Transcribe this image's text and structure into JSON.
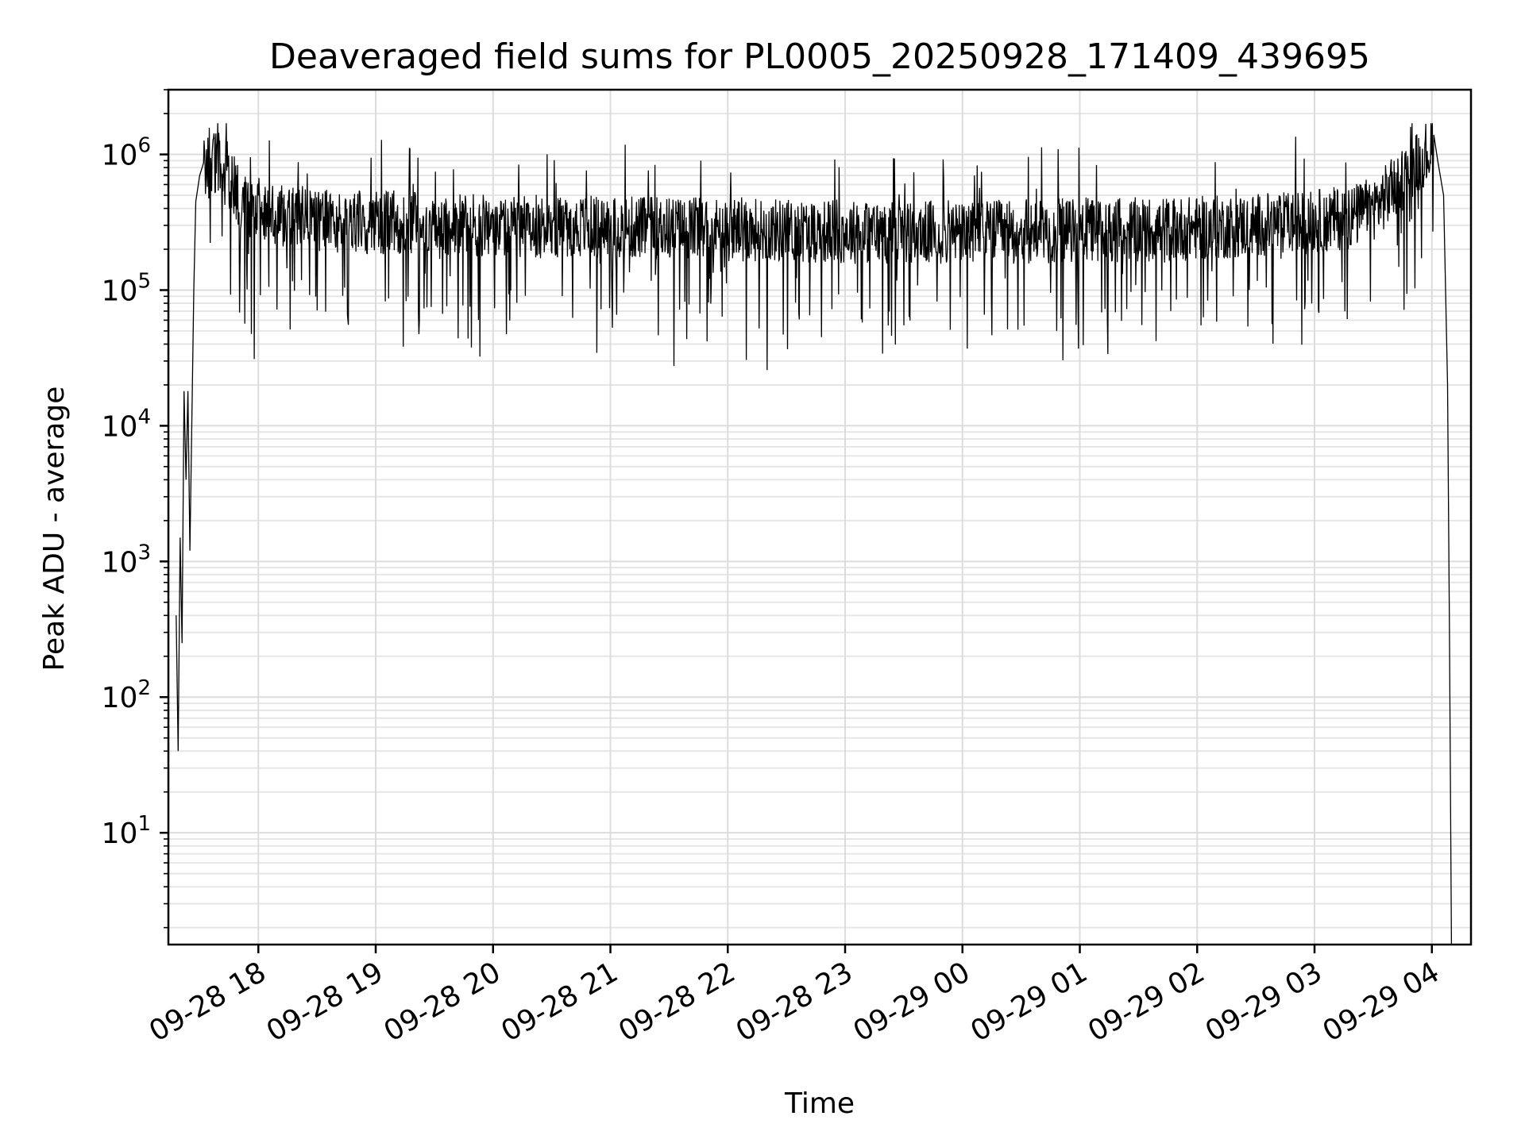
{
  "chart_data": {
    "type": "line",
    "title": "Deaveraged field sums for PL0005_20250928_171409_439695",
    "xlabel": "Time",
    "ylabel": "Peak ADU - average",
    "x_type": "datetime",
    "xlim": [
      "2025-09-28 17:14",
      "2025-09-29 04:20"
    ],
    "x_ticks": [
      "2025-09-28 18:00",
      "2025-09-28 19:00",
      "2025-09-28 20:00",
      "2025-09-28 21:00",
      "2025-09-28 22:00",
      "2025-09-28 23:00",
      "2025-09-29 00:00",
      "2025-09-29 01:00",
      "2025-09-29 02:00",
      "2025-09-29 03:00",
      "2025-09-29 04:00"
    ],
    "x_tick_labels": [
      "09-28 18",
      "09-28 19",
      "09-28 20",
      "09-28 21",
      "09-28 22",
      "09-28 23",
      "09-29 00",
      "09-29 01",
      "09-29 02",
      "09-29 03",
      "09-29 04"
    ],
    "y_scale": "log",
    "ylim": [
      1.5,
      3000000
    ],
    "y_ticks": [
      10,
      100,
      1000,
      10000,
      100000,
      1000000
    ],
    "y_tick_labels": [
      {
        "base": "10",
        "exp": "1"
      },
      {
        "base": "10",
        "exp": "2"
      },
      {
        "base": "10",
        "exp": "3"
      },
      {
        "base": "10",
        "exp": "4"
      },
      {
        "base": "10",
        "exp": "5"
      },
      {
        "base": "10",
        "exp": "6"
      }
    ],
    "grid": true,
    "line_color": "#000000",
    "series": [
      {
        "x": [
          "2025-09-28 17:18",
          "2025-09-28 17:19",
          "2025-09-28 17:20",
          "2025-09-28 17:21",
          "2025-09-28 17:22",
          "2025-09-28 17:23",
          "2025-09-28 17:24",
          "2025-09-28 17:25",
          "2025-09-28 17:27",
          "2025-09-28 17:28",
          "2025-09-28 17:30",
          "2025-09-28 17:35",
          "2025-09-28 17:40",
          "2025-09-28 17:45",
          "2025-09-28 17:50",
          "2025-09-28 17:55",
          "2025-09-28 18:05",
          "2025-09-28 18:15",
          "2025-09-28 18:30",
          "2025-09-28 19:00",
          "2025-09-28 19:30",
          "2025-09-28 20:00",
          "2025-09-28 20:30",
          "2025-09-28 21:00",
          "2025-09-28 21:30",
          "2025-09-28 22:00",
          "2025-09-28 22:30",
          "2025-09-28 23:00",
          "2025-09-28 23:30",
          "2025-09-29 00:00",
          "2025-09-29 00:30",
          "2025-09-29 01:00",
          "2025-09-29 01:30",
          "2025-09-29 02:00",
          "2025-09-29 02:30",
          "2025-09-29 03:00",
          "2025-09-29 03:20",
          "2025-09-29 03:30",
          "2025-09-29 03:40",
          "2025-09-29 03:50",
          "2025-09-29 03:56",
          "2025-09-29 04:00",
          "2025-09-29 04:03",
          "2025-09-29 04:06",
          "2025-09-29 04:08",
          "2025-09-29 04:09",
          "2025-09-29 04:10"
        ],
        "y": [
          400,
          40,
          1500,
          250,
          18000,
          4000,
          18000,
          1200,
          100000,
          450000,
          700000,
          950000,
          850000,
          650000,
          500000,
          420000,
          380000,
          350000,
          330000,
          320000,
          310000,
          300000,
          295000,
          290000,
          285000,
          280000,
          275000,
          270000,
          265000,
          265000,
          270000,
          275000,
          280000,
          285000,
          300000,
          320000,
          350000,
          400000,
          550000,
          800000,
          1000000,
          1100000,
          900000,
          500000,
          20000,
          300,
          1.5
        ]
      }
    ],
    "noise": {
      "start": "2025-09-28 17:32",
      "end": "2025-09-29 04:01",
      "approx_points": 2600,
      "dip_low": 18000,
      "spike_high": 1700000
    }
  }
}
